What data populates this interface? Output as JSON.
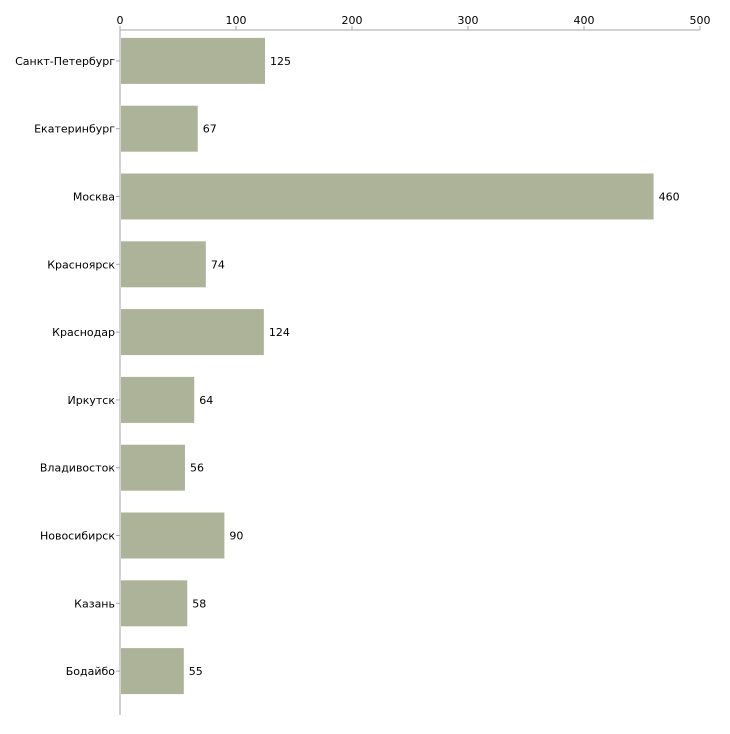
{
  "chart_data": {
    "type": "bar",
    "orientation": "horizontal",
    "title": "",
    "xlabel": "",
    "ylabel": "",
    "xlim": [
      0,
      500
    ],
    "ticks": [
      0,
      100,
      200,
      300,
      400,
      500
    ],
    "tick_labels": [
      "0",
      "100",
      "200",
      "300",
      "400",
      "500"
    ],
    "axis_position": "top",
    "grid": false,
    "legend": "none",
    "categories": [
      "Санкт-Петербург",
      "Екатеринбург",
      "Москва",
      "Красноярск",
      "Краснодар",
      "Иркутск",
      "Владивосток",
      "Новосибирск",
      "Казань",
      "Бодайбо"
    ],
    "values": [
      125,
      67,
      460,
      74,
      124,
      64,
      56,
      90,
      58,
      55
    ],
    "value_labels": [
      "125",
      "67",
      "460",
      "74",
      "124",
      "64",
      "56",
      "90",
      "58",
      "55"
    ],
    "bar_color": "#adb398",
    "axis_color": "#a6a6a6"
  }
}
